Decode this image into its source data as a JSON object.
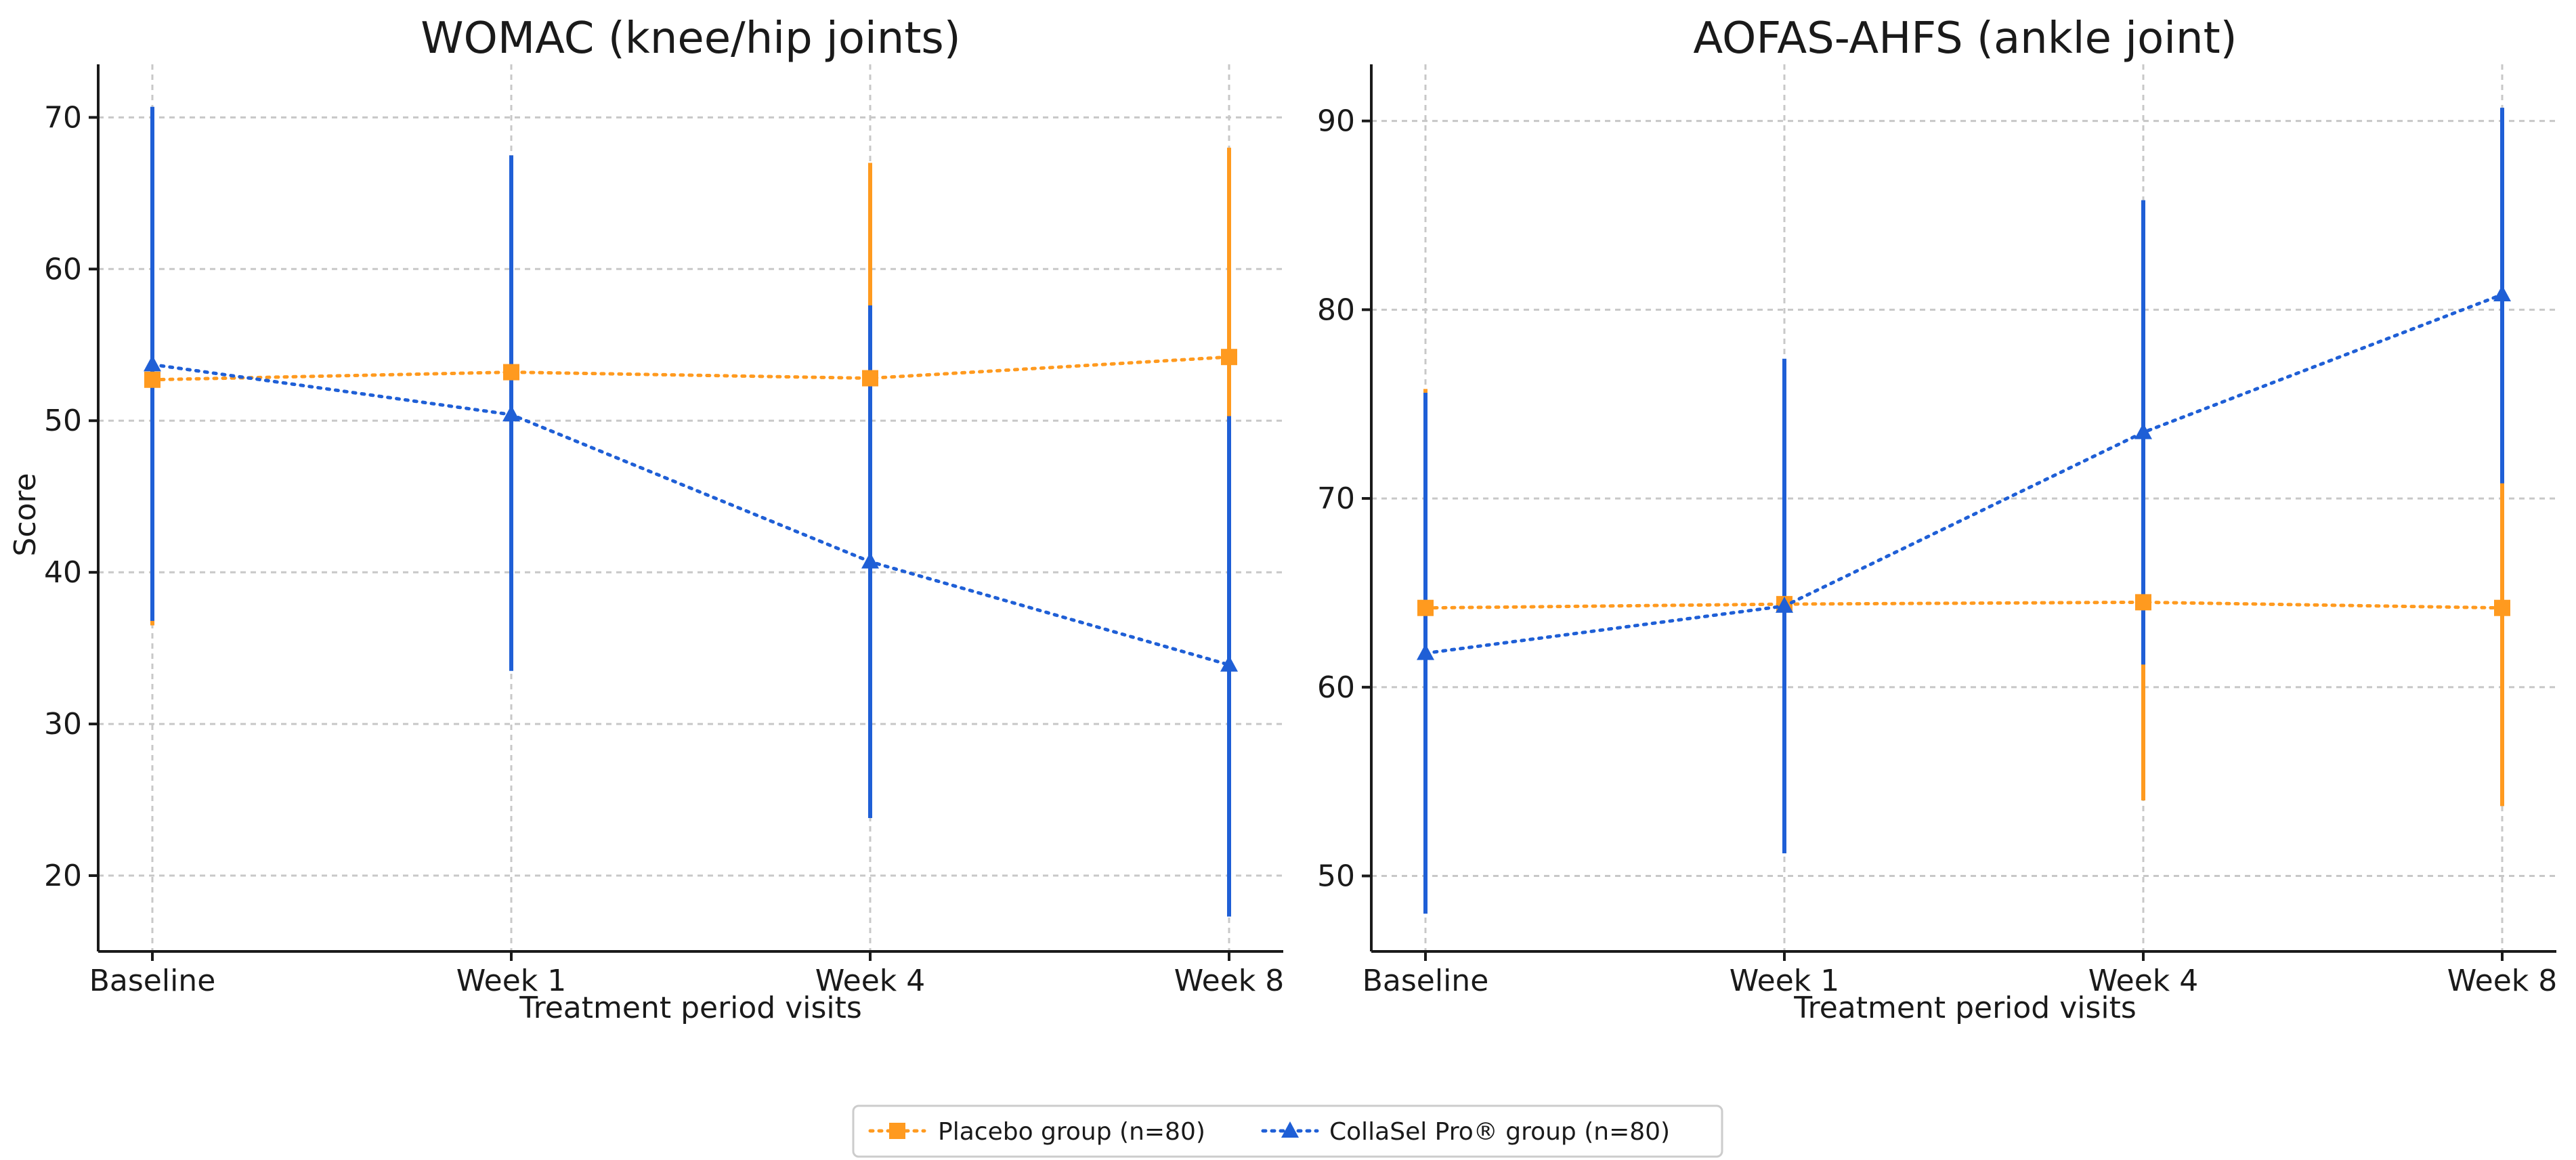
{
  "chart_data": [
    {
      "type": "line",
      "title": "WOMAC (knee/hip joints)",
      "xlabel": "Treatment period visits",
      "ylabel": "Score",
      "categories": [
        "Baseline",
        "Week 1",
        "Week 4",
        "Week 8"
      ],
      "ylim": [
        15,
        73.5
      ],
      "yticks": [
        20,
        30,
        40,
        50,
        60,
        70
      ],
      "grid": true,
      "series": [
        {
          "name": "Placebo group (n=80)",
          "color": "#ff9a1f",
          "marker": "square",
          "linestyle": "dotted",
          "values": [
            52.7,
            53.2,
            52.8,
            54.2
          ],
          "err_low": [
            36.5,
            36.0,
            38.0,
            40.3
          ],
          "err_high": [
            70.3,
            67.5,
            67.0,
            68.0
          ]
        },
        {
          "name": "CollaSel Pro® group (n=80)",
          "color": "#1f5fd6",
          "marker": "triangle",
          "linestyle": "dotted",
          "values": [
            53.7,
            50.4,
            40.7,
            33.9
          ],
          "err_low": [
            36.8,
            33.5,
            23.8,
            17.3
          ],
          "err_high": [
            70.7,
            67.5,
            57.6,
            50.3
          ]
        }
      ]
    },
    {
      "type": "line",
      "title": "AOFAS-AHFS (ankle joint)",
      "xlabel": "Treatment period visits",
      "ylabel": "",
      "categories": [
        "Baseline",
        "Week 1",
        "Week 4",
        "Week 8"
      ],
      "ylim": [
        46,
        93
      ],
      "yticks": [
        50,
        60,
        70,
        80,
        90
      ],
      "grid": true,
      "series": [
        {
          "name": "Placebo group (n=80)",
          "color": "#ff9a1f",
          "marker": "square",
          "linestyle": "dotted",
          "values": [
            64.2,
            64.4,
            64.5,
            64.2
          ],
          "err_low": [
            52.5,
            52.0,
            54.0,
            53.7
          ],
          "err_high": [
            75.8,
            77.0,
            75.0,
            71.0
          ]
        },
        {
          "name": "CollaSel Pro® group (n=80)",
          "color": "#1f5fd6",
          "marker": "triangle",
          "linestyle": "dotted",
          "values": [
            61.8,
            64.3,
            73.5,
            80.8
          ],
          "err_low": [
            48.0,
            51.2,
            61.2,
            70.8
          ],
          "err_high": [
            75.6,
            77.4,
            85.8,
            90.7
          ]
        }
      ]
    }
  ],
  "legend": {
    "position": "bottom-center",
    "entries": [
      "Placebo group (n=80)",
      "CollaSel Pro® group (n=80)"
    ]
  }
}
